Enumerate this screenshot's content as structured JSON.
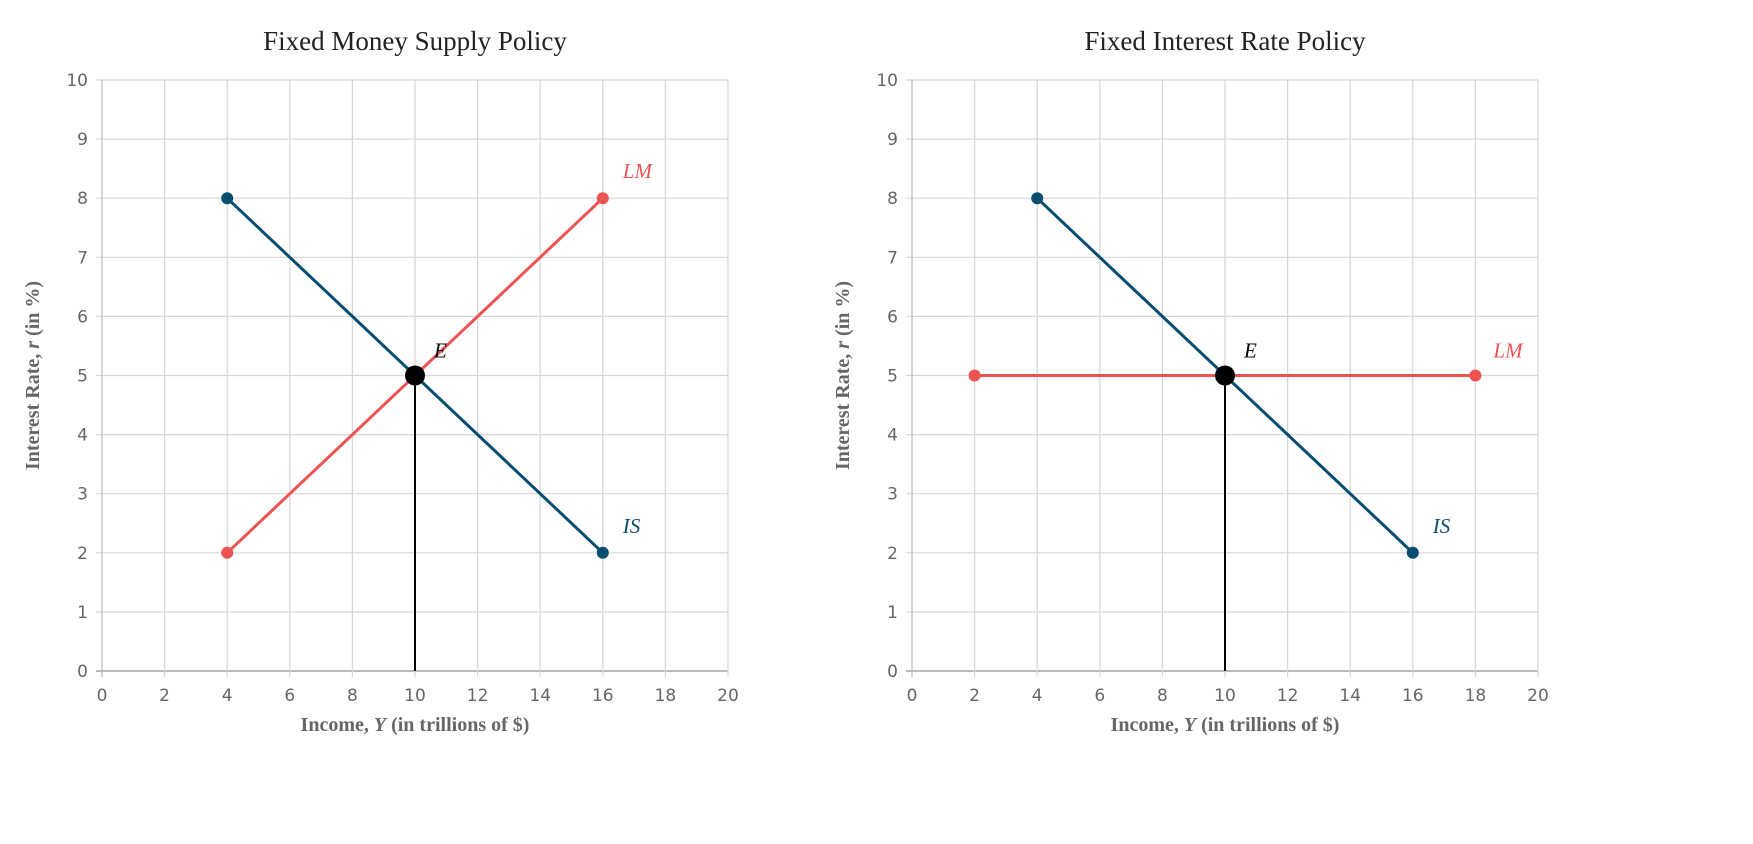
{
  "chart_data": [
    {
      "type": "line",
      "title": "Fixed Money Supply Policy",
      "xlabel": "Income, Y (in trillions of $)",
      "ylabel": "Interest Rate, r (in %)",
      "xlim": [
        0,
        20
      ],
      "ylim": [
        0,
        10
      ],
      "xticks": [
        0,
        2,
        4,
        6,
        8,
        10,
        12,
        14,
        16,
        18,
        20
      ],
      "yticks": [
        0,
        1,
        2,
        3,
        4,
        5,
        6,
        7,
        8,
        9,
        10
      ],
      "grid": true,
      "series": [
        {
          "name": "IS",
          "color": "#064d70",
          "x": [
            4,
            16
          ],
          "y": [
            8,
            2
          ]
        },
        {
          "name": "LM",
          "color": "#ee5354",
          "x": [
            4,
            16
          ],
          "y": [
            2,
            8
          ]
        }
      ],
      "equilibrium": {
        "label": "E",
        "x": 10,
        "y": 5,
        "color": "#000000"
      }
    },
    {
      "type": "line",
      "title": "Fixed Interest Rate Policy",
      "xlabel": "Income, Y (in trillions of $)",
      "ylabel": "Interest Rate, r (in %)",
      "xlim": [
        0,
        20
      ],
      "ylim": [
        0,
        10
      ],
      "xticks": [
        0,
        2,
        4,
        6,
        8,
        10,
        12,
        14,
        16,
        18,
        20
      ],
      "yticks": [
        0,
        1,
        2,
        3,
        4,
        5,
        6,
        7,
        8,
        9,
        10
      ],
      "grid": true,
      "series": [
        {
          "name": "IS",
          "color": "#064d70",
          "x": [
            4,
            16
          ],
          "y": [
            8,
            2
          ]
        },
        {
          "name": "LM",
          "color": "#ee5354",
          "x": [
            2,
            18
          ],
          "y": [
            5,
            5
          ]
        }
      ],
      "equilibrium": {
        "label": "E",
        "x": 10,
        "y": 5,
        "color": "#000000"
      }
    }
  ]
}
